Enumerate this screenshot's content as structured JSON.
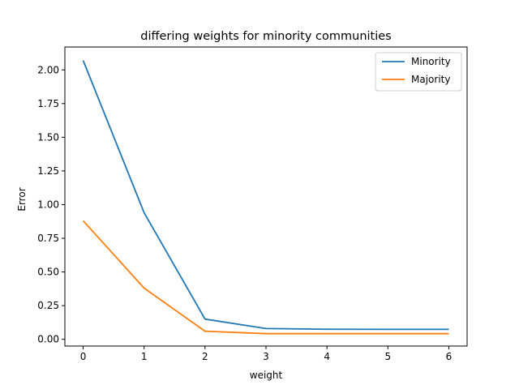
{
  "chart_data": {
    "type": "line",
    "title": "differing weights for minority communities",
    "xlabel": "weight",
    "ylabel": "Error",
    "x": [
      0,
      1,
      2,
      3,
      4,
      5,
      6
    ],
    "xlim": [
      -0.3,
      6.3
    ],
    "ylim": [
      -0.05,
      2.17
    ],
    "xticks": [
      0,
      1,
      2,
      3,
      4,
      5,
      6
    ],
    "xtick_labels": [
      "0",
      "1",
      "2",
      "3",
      "4",
      "5",
      "6"
    ],
    "yticks": [
      0,
      0.25,
      0.5,
      0.75,
      1.0,
      1.25,
      1.5,
      1.75,
      2.0
    ],
    "ytick_labels": [
      "0.00",
      "0.25",
      "0.50",
      "0.75",
      "1.00",
      "1.25",
      "1.50",
      "1.75",
      "2.00"
    ],
    "grid": false,
    "legend_position": "top-right",
    "series": [
      {
        "name": "Minority",
        "color": "#1f77b4",
        "values": [
          2.07,
          0.94,
          0.15,
          0.08,
          0.075,
          0.074,
          0.074
        ]
      },
      {
        "name": "Majority",
        "color": "#ff7f0e",
        "values": [
          0.88,
          0.38,
          0.06,
          0.042,
          0.042,
          0.042,
          0.042
        ]
      }
    ]
  }
}
